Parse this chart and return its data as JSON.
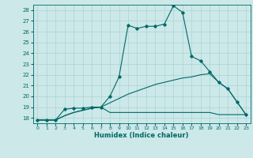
{
  "xlabel": "Humidex (Indice chaleur)",
  "xlim": [
    -0.5,
    23.5
  ],
  "ylim": [
    17.5,
    28.5
  ],
  "yticks": [
    18,
    19,
    20,
    21,
    22,
    23,
    24,
    25,
    26,
    27,
    28
  ],
  "xticks": [
    0,
    1,
    2,
    3,
    4,
    5,
    6,
    7,
    8,
    9,
    10,
    11,
    12,
    13,
    14,
    15,
    16,
    17,
    18,
    19,
    20,
    21,
    22,
    23
  ],
  "bg_color": "#cce8e8",
  "grid_color": "#aad4d4",
  "line_color": "#006868",
  "line1_x": [
    0,
    1,
    2,
    3,
    4,
    5,
    6,
    7,
    8,
    9,
    10,
    11,
    12,
    13,
    14,
    15,
    16,
    17,
    18,
    19,
    20,
    21,
    22,
    23
  ],
  "line1_y": [
    17.8,
    17.8,
    17.8,
    18.8,
    18.9,
    18.9,
    19.0,
    19.0,
    20.0,
    21.8,
    26.6,
    26.3,
    26.5,
    26.5,
    26.7,
    28.4,
    27.8,
    23.7,
    23.3,
    22.3,
    21.3,
    20.7,
    19.5,
    18.3
  ],
  "line2_x": [
    0,
    1,
    2,
    3,
    4,
    5,
    6,
    7,
    8,
    9,
    10,
    11,
    12,
    13,
    14,
    15,
    16,
    17,
    18,
    19,
    20,
    21,
    22,
    23
  ],
  "line2_y": [
    17.8,
    17.8,
    17.8,
    18.2,
    18.5,
    18.7,
    18.9,
    19.0,
    18.5,
    18.5,
    18.5,
    18.5,
    18.5,
    18.5,
    18.5,
    18.5,
    18.5,
    18.5,
    18.5,
    18.5,
    18.3,
    18.3,
    18.3,
    18.3
  ],
  "line3_x": [
    0,
    1,
    2,
    3,
    4,
    5,
    6,
    7,
    8,
    9,
    10,
    11,
    12,
    13,
    14,
    15,
    16,
    17,
    18,
    19,
    20,
    21,
    22,
    23
  ],
  "line3_y": [
    17.8,
    17.8,
    17.8,
    18.2,
    18.5,
    18.7,
    18.9,
    19.0,
    19.4,
    19.8,
    20.2,
    20.5,
    20.8,
    21.1,
    21.3,
    21.5,
    21.7,
    21.8,
    22.0,
    22.1,
    21.3,
    20.7,
    19.5,
    18.3
  ]
}
